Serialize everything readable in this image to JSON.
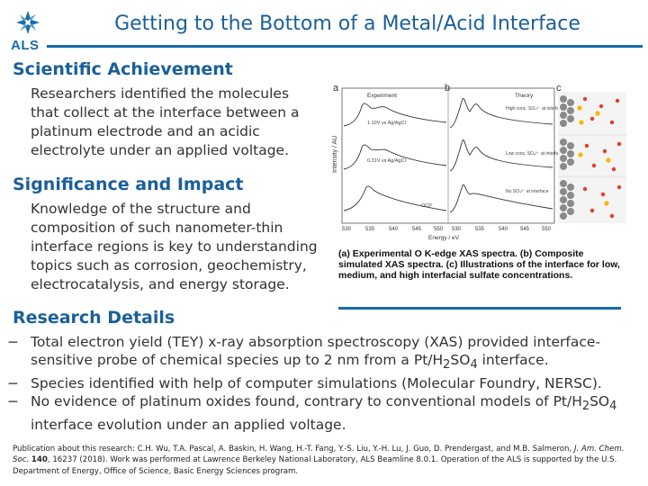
{
  "header": {
    "logo_text": "ALS",
    "title": "Getting to the Bottom of a Metal/Acid Interface",
    "colors": {
      "accent": "#1a6aa8",
      "heading": "#1a5f9a"
    }
  },
  "achievement": {
    "heading": "Scientific Achievement",
    "text": "Researchers identified the molecules that collect at the interface between a platinum electrode and an acidic electrolyte under an applied voltage."
  },
  "significance": {
    "heading": "Significance and Impact",
    "text": "Knowledge of the structure and composition of such nanometer-thin interface regions is key to understanding topics such as corrosion, geochemistry, electrocatalysis, and energy storage."
  },
  "figure": {
    "panel_a": "a",
    "panel_b": "b",
    "panel_c": "c",
    "label_experiment": "Experiment",
    "label_theory": "Theory",
    "trace_1": "1.10V vs Ag/AgCl",
    "trace_2": "0.31V vs Ag/AgCl",
    "trace_3": "OCP",
    "theory_1": "High conc. SO₄²⁻ at interface",
    "theory_2": "Low conc. SO₄²⁻ at interface",
    "theory_3": "No SO₄²⁻ at interface",
    "ylabel": "Intensity / AU",
    "xlabel": "Energy / eV",
    "xticks": [
      "530",
      "535",
      "540",
      "545",
      "550",
      "530",
      "535",
      "540",
      "545",
      "550"
    ],
    "caption": "(a) Experimental O K-edge XAS spectra. (b) Composite simulated XAS spectra. (c) Illustrations of the interface for low, medium, and high interfacial sulfate concentrations."
  },
  "details": {
    "heading": "Research Details",
    "bullet_marker": "−",
    "b1_pre": "Total electron yield (TEY) x-ray absorption spectroscopy (XAS) provided interface-sensitive probe of chemical species up to 2 nm from a Pt/H",
    "b1_sub1": "2",
    "b1_mid": "SO",
    "b1_sub2": "4",
    "b1_post": " interface.",
    "b2": "Species identified with help of computer simulations (Molecular Foundry, NERSC).",
    "b3_pre": "No evidence of platinum oxides found, contrary to conventional models of Pt/H",
    "b3_sub1": "2",
    "b3_mid": "SO",
    "b3_sub2": "4",
    "b3_post": " interface evolution under an applied voltage."
  },
  "publication": {
    "lead": "Publication about this research: C.H. Wu, T.A. Pascal, A. Baskin, H. Wang, H.-T. Fang, Y.-S. Liu, Y.-H. Lu, J. Guo, D. Prendergast, and M.B. Salmeron, ",
    "journal": "J. Am. Chem. Soc.",
    "vol_pre": " ",
    "volume": "140",
    "rest": ", 16237 (2018). Work was performed at Lawrence Berkeley National Laboratory, ALS Beamline 8.0.1. Operation of the ALS is supported by the U.S. Department of Energy, Office of Science, Basic Energy Sciences program."
  }
}
